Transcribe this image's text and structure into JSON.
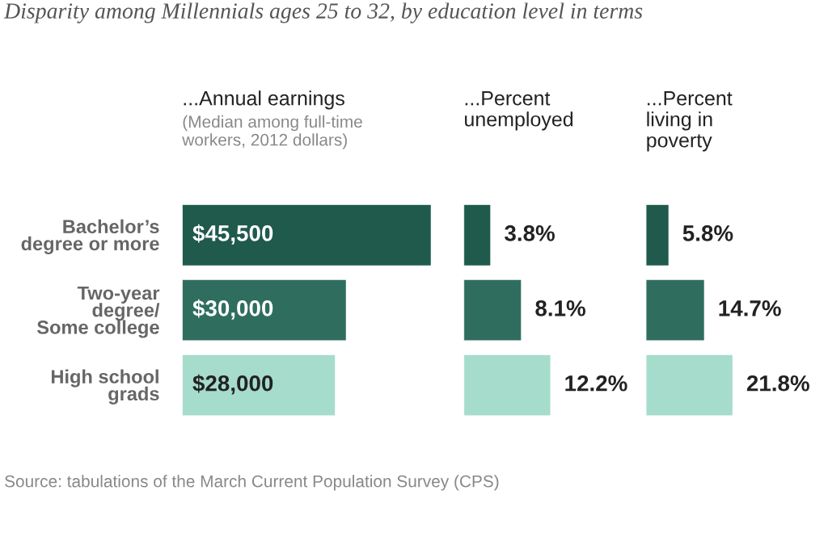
{
  "chart_data": [
    {
      "type": "bar",
      "orientation": "horizontal",
      "title": "Disparity among Millennials ages 25 to 32, by education level in terms",
      "subtitle": "...Annual earnings",
      "categories": [
        "Bachelor’s\ndegree or more",
        "Two-year\ndegree/\nSome college",
        "High school\ngrads"
      ],
      "values": [
        45500,
        30000,
        28000
      ],
      "value_labels": [
        "$45,500",
        "$30,000",
        "$28,000"
      ],
      "colors": [
        "#1f5a4c",
        "#2f6e5e",
        "#a6dccb"
      ],
      "tick_labels": "y",
      "annotations": [
        "(Median among full-time\nworkers, 2012 dollars)",
        "Source: tabulations of the March Current Population Survey (CPS)"
      ]
    },
    {
      "type": "bar",
      "orientation": "horizontal",
      "subtitle": "...Percent\nunemployed",
      "categories": [
        null,
        null,
        null
      ],
      "values": [
        3.8,
        8.1,
        12.2
      ],
      "value_labels": [
        "3.8%",
        "8.1%",
        "12.2%"
      ],
      "colors": [
        "#1f5a4c",
        "#2f6e5e",
        "#a6dccb"
      ],
      "tick_labels": false
    },
    {
      "type": "bar",
      "orientation": "horizontal",
      "subtitle": "...Percent\nliving in\npoverty",
      "categories": [
        null,
        null,
        null
      ],
      "values": [
        5.8,
        14.7,
        21.8
      ],
      "value_labels": [
        "5.8%",
        "14.7%",
        "21.8%"
      ],
      "colors": [
        "#1f5a4c",
        "#2f6e5e",
        "#a6dccb"
      ],
      "tick_labels": false
    }
  ]
}
